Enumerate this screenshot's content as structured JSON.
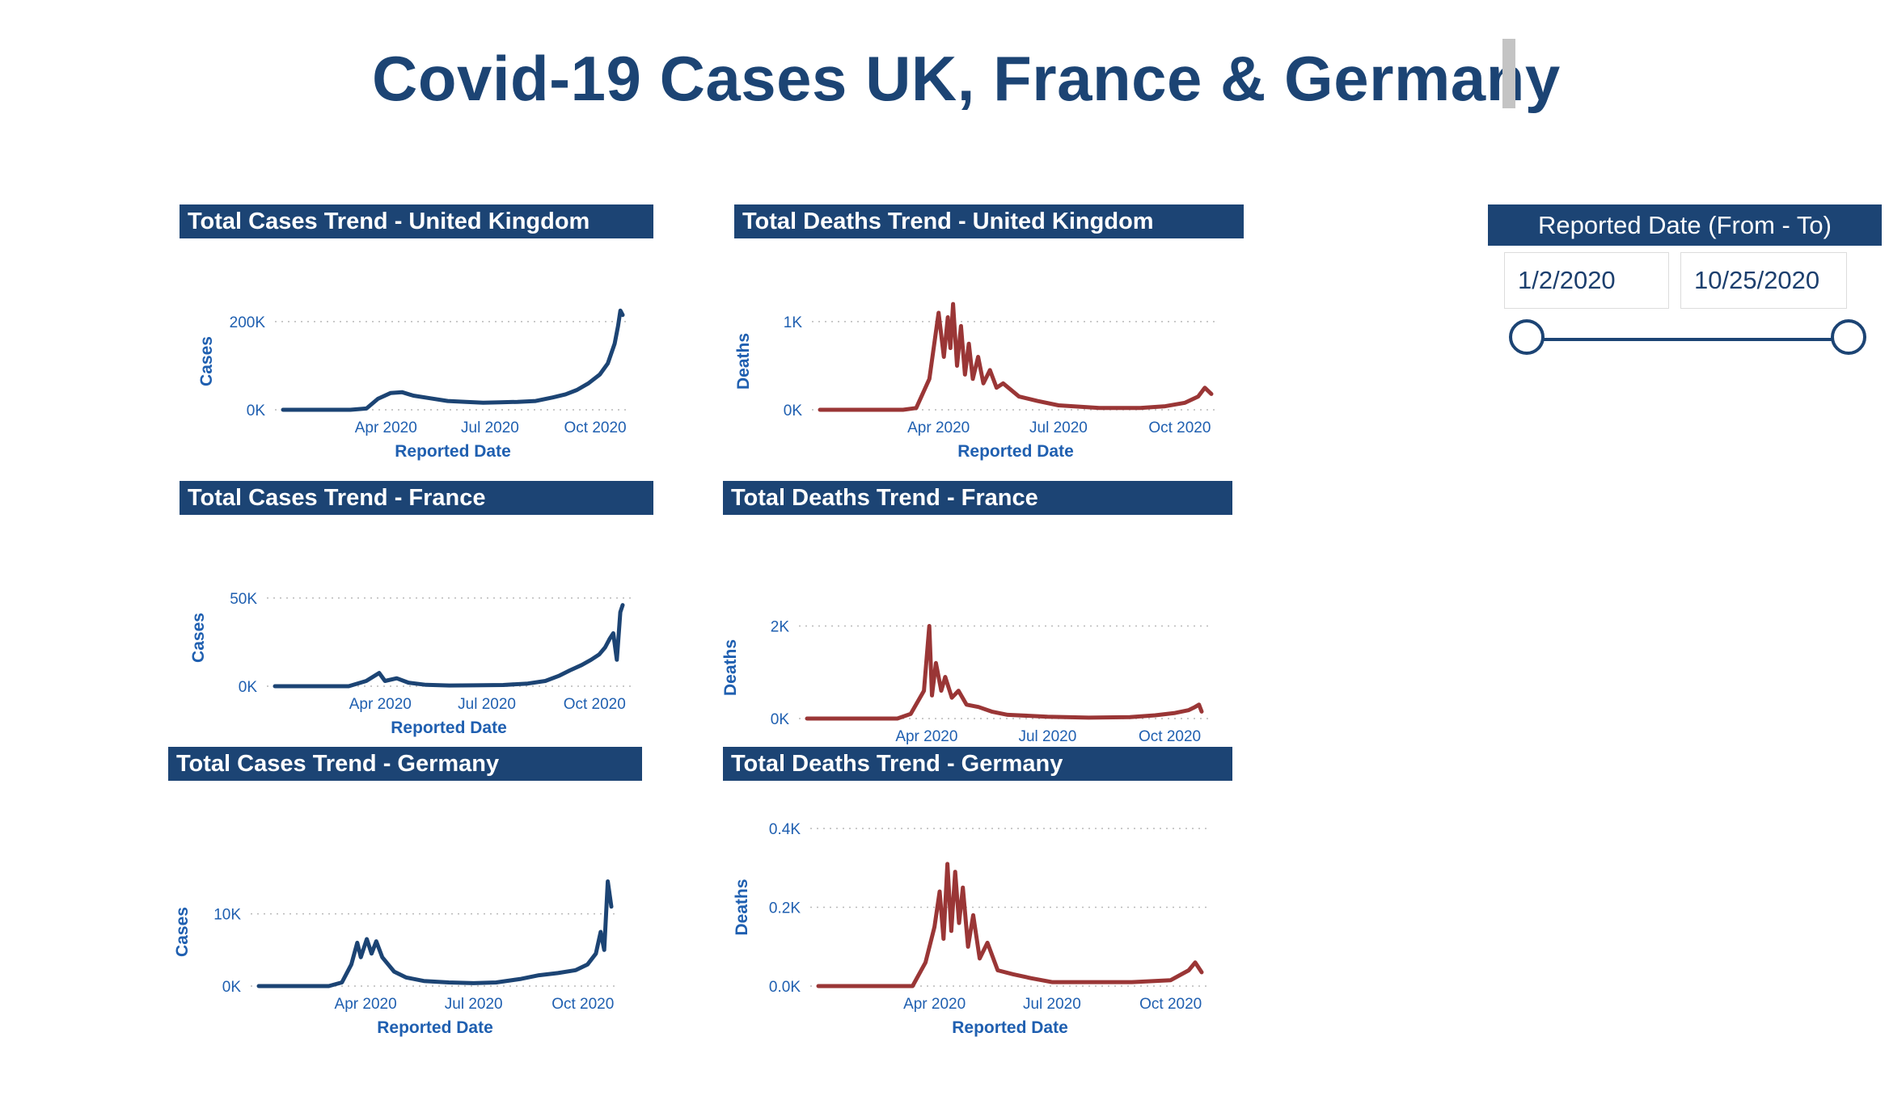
{
  "title": "Covid-19 Cases UK, France & Germany",
  "colors": {
    "header_bg": "#1c4474",
    "cases_line": "#1c4474",
    "deaths_line": "#9a3636",
    "tick_text": "#1f5fb0"
  },
  "slicer": {
    "title": "Reported Date (From - To)",
    "from": "1/2/2020",
    "to": "10/25/2020",
    "range_fraction": [
      0,
      1
    ]
  },
  "x_ticks": [
    "Apr 2020",
    "Jul 2020",
    "Oct 2020"
  ],
  "chart_data": [
    {
      "id": "uk-cases",
      "type": "line",
      "title": "Total Cases Trend - United Kingdom",
      "xlabel": "Reported Date",
      "ylabel": "Cases",
      "color": "#1c4474",
      "x_range": [
        "2020-01-02",
        "2020-10-25"
      ],
      "ylim": [
        0,
        220000
      ],
      "y_ticks": [
        0,
        200000
      ],
      "y_tick_labels": [
        "0K",
        "200K"
      ],
      "x": [
        "2020-01-02",
        "2020-03-01",
        "2020-03-15",
        "2020-03-25",
        "2020-04-05",
        "2020-04-15",
        "2020-04-25",
        "2020-05-10",
        "2020-05-25",
        "2020-06-10",
        "2020-06-25",
        "2020-07-10",
        "2020-07-25",
        "2020-08-10",
        "2020-08-25",
        "2020-09-05",
        "2020-09-15",
        "2020-09-25",
        "2020-10-05",
        "2020-10-12",
        "2020-10-18",
        "2020-10-21",
        "2020-10-23",
        "2020-10-25"
      ],
      "values": [
        0,
        0,
        3000,
        25000,
        38000,
        40000,
        32000,
        26000,
        20000,
        18000,
        16000,
        17000,
        18000,
        20000,
        28000,
        35000,
        45000,
        60000,
        80000,
        105000,
        150000,
        190000,
        225000,
        215000
      ]
    },
    {
      "id": "uk-deaths",
      "type": "line",
      "title": "Total Deaths Trend - United Kingdom",
      "xlabel": "Reported Date",
      "ylabel": "Deaths",
      "color": "#9a3636",
      "x_range": [
        "2020-01-02",
        "2020-10-25"
      ],
      "ylim": [
        0,
        1100
      ],
      "y_ticks": [
        0,
        1000
      ],
      "y_tick_labels": [
        "0K",
        "1K"
      ],
      "x": [
        "2020-01-02",
        "2020-03-05",
        "2020-03-15",
        "2020-03-25",
        "2020-04-01",
        "2020-04-05",
        "2020-04-08",
        "2020-04-10",
        "2020-04-12",
        "2020-04-15",
        "2020-04-18",
        "2020-04-21",
        "2020-04-24",
        "2020-04-27",
        "2020-05-01",
        "2020-05-05",
        "2020-05-10",
        "2020-05-15",
        "2020-05-20",
        "2020-06-01",
        "2020-06-15",
        "2020-07-01",
        "2020-08-01",
        "2020-09-01",
        "2020-09-20",
        "2020-10-05",
        "2020-10-15",
        "2020-10-20",
        "2020-10-25"
      ],
      "values": [
        0,
        0,
        20,
        350,
        1100,
        600,
        1050,
        700,
        1200,
        500,
        950,
        400,
        750,
        350,
        600,
        300,
        450,
        250,
        300,
        150,
        100,
        50,
        20,
        20,
        40,
        80,
        150,
        250,
        180
      ]
    },
    {
      "id": "fr-cases",
      "type": "line",
      "title": "Total Cases Trend - France",
      "xlabel": "Reported Date",
      "ylabel": "Cases",
      "color": "#1c4474",
      "x_range": [
        "2020-01-02",
        "2020-10-25"
      ],
      "ylim": [
        0,
        55000
      ],
      "y_ticks": [
        0,
        50000
      ],
      "y_tick_labels": [
        "0K",
        "50K"
      ],
      "x": [
        "2020-01-02",
        "2020-03-05",
        "2020-03-20",
        "2020-03-31",
        "2020-04-05",
        "2020-04-15",
        "2020-04-25",
        "2020-05-10",
        "2020-05-30",
        "2020-06-20",
        "2020-07-15",
        "2020-08-05",
        "2020-08-20",
        "2020-09-01",
        "2020-09-10",
        "2020-09-20",
        "2020-09-28",
        "2020-10-05",
        "2020-10-10",
        "2020-10-14",
        "2020-10-17",
        "2020-10-20",
        "2020-10-23",
        "2020-10-25"
      ],
      "values": [
        0,
        0,
        3000,
        7500,
        3000,
        4500,
        2000,
        800,
        400,
        500,
        700,
        1500,
        3000,
        6000,
        9000,
        12000,
        15000,
        18000,
        22000,
        27000,
        30000,
        15000,
        42000,
        46000
      ]
    },
    {
      "id": "fr-deaths",
      "type": "line",
      "title": "Total Deaths Trend - France",
      "xlabel": "Reported Date",
      "ylabel": "Deaths",
      "color": "#9a3636",
      "x_range": [
        "2020-01-02",
        "2020-10-25"
      ],
      "ylim": [
        0,
        2200
      ],
      "y_ticks": [
        0,
        2000
      ],
      "y_tick_labels": [
        "0K",
        "2K"
      ],
      "x": [
        "2020-01-02",
        "2020-03-10",
        "2020-03-20",
        "2020-03-30",
        "2020-04-03",
        "2020-04-05",
        "2020-04-08",
        "2020-04-12",
        "2020-04-15",
        "2020-04-20",
        "2020-04-25",
        "2020-05-01",
        "2020-05-10",
        "2020-05-20",
        "2020-06-01",
        "2020-07-01",
        "2020-08-01",
        "2020-09-01",
        "2020-09-20",
        "2020-10-05",
        "2020-10-15",
        "2020-10-20",
        "2020-10-23",
        "2020-10-25"
      ],
      "values": [
        0,
        0,
        100,
        600,
        2000,
        500,
        1200,
        600,
        900,
        450,
        600,
        300,
        250,
        150,
        80,
        40,
        20,
        30,
        70,
        120,
        180,
        250,
        300,
        150
      ]
    },
    {
      "id": "de-cases",
      "type": "line",
      "title": "Total Cases Trend - Germany",
      "xlabel": "Reported Date",
      "ylabel": "Cases",
      "color": "#1c4474",
      "x_range": [
        "2020-01-02",
        "2020-10-25"
      ],
      "ylim": [
        0,
        15000
      ],
      "y_ticks": [
        0,
        10000
      ],
      "y_tick_labels": [
        "0K",
        "10K"
      ],
      "x": [
        "2020-01-02",
        "2020-03-01",
        "2020-03-12",
        "2020-03-20",
        "2020-03-25",
        "2020-03-28",
        "2020-04-02",
        "2020-04-06",
        "2020-04-10",
        "2020-04-15",
        "2020-04-20",
        "2020-04-25",
        "2020-05-05",
        "2020-05-20",
        "2020-06-10",
        "2020-07-01",
        "2020-07-20",
        "2020-08-10",
        "2020-08-25",
        "2020-09-10",
        "2020-09-25",
        "2020-10-05",
        "2020-10-12",
        "2020-10-16",
        "2020-10-19",
        "2020-10-22",
        "2020-10-25"
      ],
      "values": [
        0,
        0,
        500,
        3000,
        6000,
        4000,
        6500,
        4500,
        6200,
        4000,
        3000,
        2000,
        1200,
        700,
        500,
        400,
        500,
        1000,
        1500,
        1800,
        2200,
        3000,
        4500,
        7500,
        5000,
        14500,
        11000
      ]
    },
    {
      "id": "de-deaths",
      "type": "line",
      "title": "Total Deaths Trend - Germany",
      "xlabel": "Reported Date",
      "ylabel": "Deaths",
      "color": "#9a3636",
      "x_range": [
        "2020-01-02",
        "2020-10-25"
      ],
      "ylim": [
        0,
        400
      ],
      "y_ticks": [
        0,
        200,
        400
      ],
      "y_tick_labels": [
        "0.0K",
        "0.2K",
        "0.4K"
      ],
      "x": [
        "2020-01-02",
        "2020-03-15",
        "2020-03-25",
        "2020-04-01",
        "2020-04-05",
        "2020-04-08",
        "2020-04-11",
        "2020-04-14",
        "2020-04-17",
        "2020-04-20",
        "2020-04-23",
        "2020-04-27",
        "2020-05-01",
        "2020-05-06",
        "2020-05-12",
        "2020-05-20",
        "2020-06-01",
        "2020-06-15",
        "2020-07-01",
        "2020-08-01",
        "2020-09-01",
        "2020-10-01",
        "2020-10-15",
        "2020-10-20",
        "2020-10-25"
      ],
      "values": [
        0,
        0,
        60,
        150,
        240,
        120,
        310,
        140,
        290,
        160,
        250,
        100,
        180,
        70,
        110,
        40,
        30,
        20,
        10,
        10,
        10,
        15,
        40,
        60,
        35
      ]
    }
  ]
}
